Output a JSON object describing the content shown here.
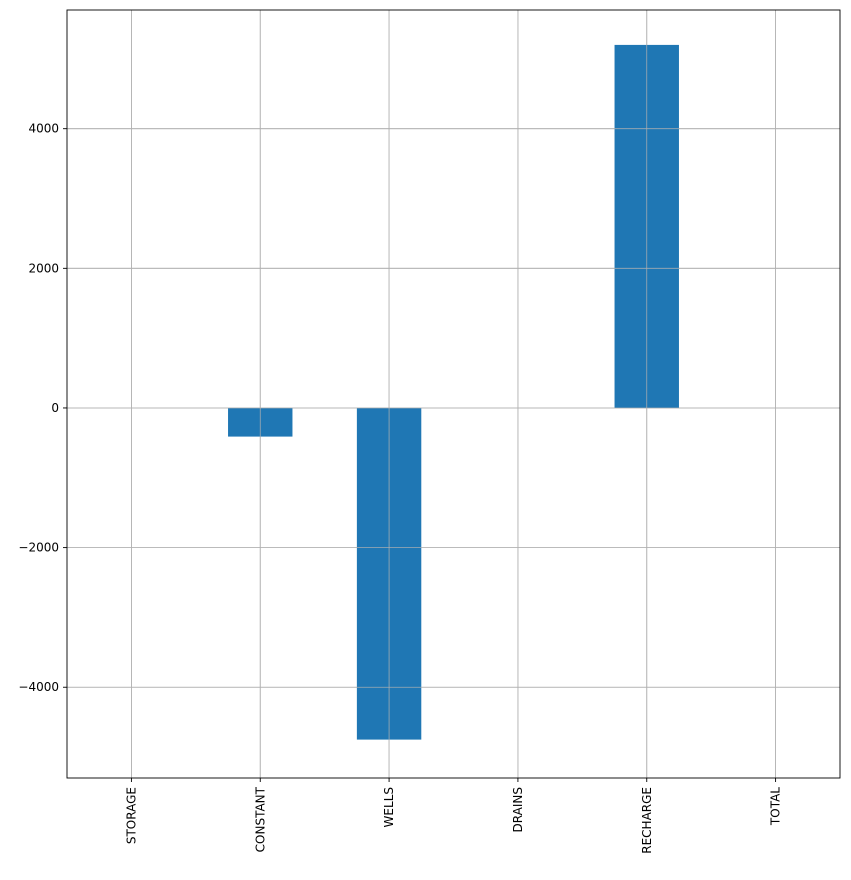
{
  "chart_data": {
    "type": "bar",
    "title": "",
    "xlabel": "",
    "ylabel": "",
    "categories": [
      "STORAGE",
      "CONSTANT",
      "WELLS",
      "DRAINS",
      "RECHARGE",
      "TOTAL"
    ],
    "values": [
      0,
      -410,
      -4750,
      0,
      5200,
      0
    ],
    "ylim": [
      -5300,
      5700
    ],
    "yticks": [
      -4000,
      -2000,
      0,
      2000,
      4000
    ],
    "ytick_labels": [
      "−4000",
      "−2000",
      "0",
      "2000",
      "4000"
    ],
    "grid": true,
    "legend": false,
    "bar_color": "#1f77b4",
    "grid_color": "#b0b0b0"
  }
}
